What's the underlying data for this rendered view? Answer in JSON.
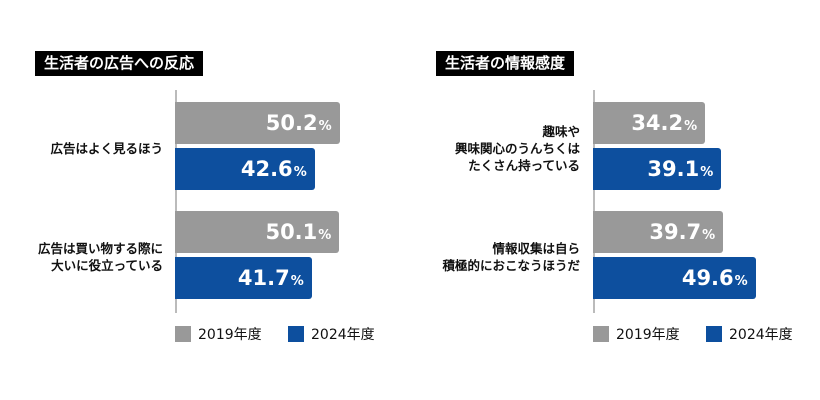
{
  "legend": [
    {
      "label": "2019年度",
      "color": "#999999"
    },
    {
      "label": "2024年度",
      "color": "#0d4f9e"
    }
  ],
  "chart_data": [
    {
      "type": "bar",
      "orientation": "horizontal",
      "title": "生活者の広告への反応",
      "categories": [
        "広告はよく見るほう",
        "広告は買い物する際に\n大いに役立っている"
      ],
      "series": [
        {
          "name": "2019年度",
          "values": [
            50.2,
            50.1
          ]
        },
        {
          "name": "2024年度",
          "values": [
            42.6,
            41.7
          ]
        }
      ],
      "value_suffix": "%",
      "grid": false,
      "legend_position": "bottom"
    },
    {
      "type": "bar",
      "orientation": "horizontal",
      "title": "生活者の情報感度",
      "categories": [
        "趣味や\n興味関心のうんちくは\nたくさん持っている",
        "情報収集は自ら\n積極的におこなうほうだ"
      ],
      "series": [
        {
          "name": "2019年度",
          "values": [
            34.2,
            39.7
          ]
        },
        {
          "name": "2024年度",
          "values": [
            39.1,
            49.6
          ]
        }
      ],
      "value_suffix": "%",
      "grid": false,
      "legend_position": "bottom"
    }
  ]
}
